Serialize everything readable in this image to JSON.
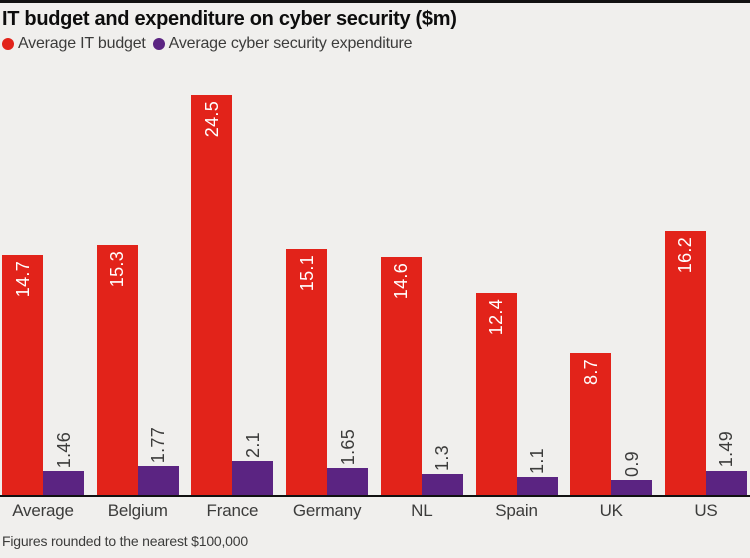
{
  "title": "IT budget and expenditure on cyber security ($m)",
  "legend": [
    {
      "label": "Average IT budget",
      "color": "#e2231a",
      "icon": "circle-dot"
    },
    {
      "label": "Average cyber security expenditure",
      "color": "#5b2482",
      "icon": "circle-dot"
    }
  ],
  "footnote": "Figures rounded to the nearest $100,000",
  "colors": {
    "it_budget_red": "#e2231a",
    "cyber_purple": "#5b2482",
    "background": "#f0efed",
    "axis_black": "#111111",
    "text_dark": "#3c3c3b",
    "value_label_on_red": "#ffffff"
  },
  "chart_data": {
    "type": "bar",
    "title": "IT budget and expenditure on cyber security ($m)",
    "categories": [
      "Average",
      "Belgium",
      "France",
      "Germany",
      "NL",
      "Spain",
      "UK",
      "US"
    ],
    "series": [
      {
        "name": "Average IT budget",
        "color": "#e2231a",
        "values": [
          14.7,
          15.3,
          24.5,
          15.1,
          14.6,
          12.4,
          8.7,
          16.2
        ],
        "label_color": "#ffffff",
        "label_position": "inside-top"
      },
      {
        "name": "Average cyber security expenditure",
        "color": "#5b2482",
        "values": [
          1.46,
          1.77,
          2.1,
          1.65,
          1.3,
          1.1,
          0.9,
          1.49
        ],
        "label_color": "#3c3c3b",
        "label_position": "above"
      }
    ],
    "xlabel": "",
    "ylabel": "",
    "ylim": [
      0,
      24.5
    ],
    "grid": false,
    "legend_position": "top-left",
    "value_labels_rotated": true,
    "footnote": "Figures rounded to the nearest $100,000"
  }
}
